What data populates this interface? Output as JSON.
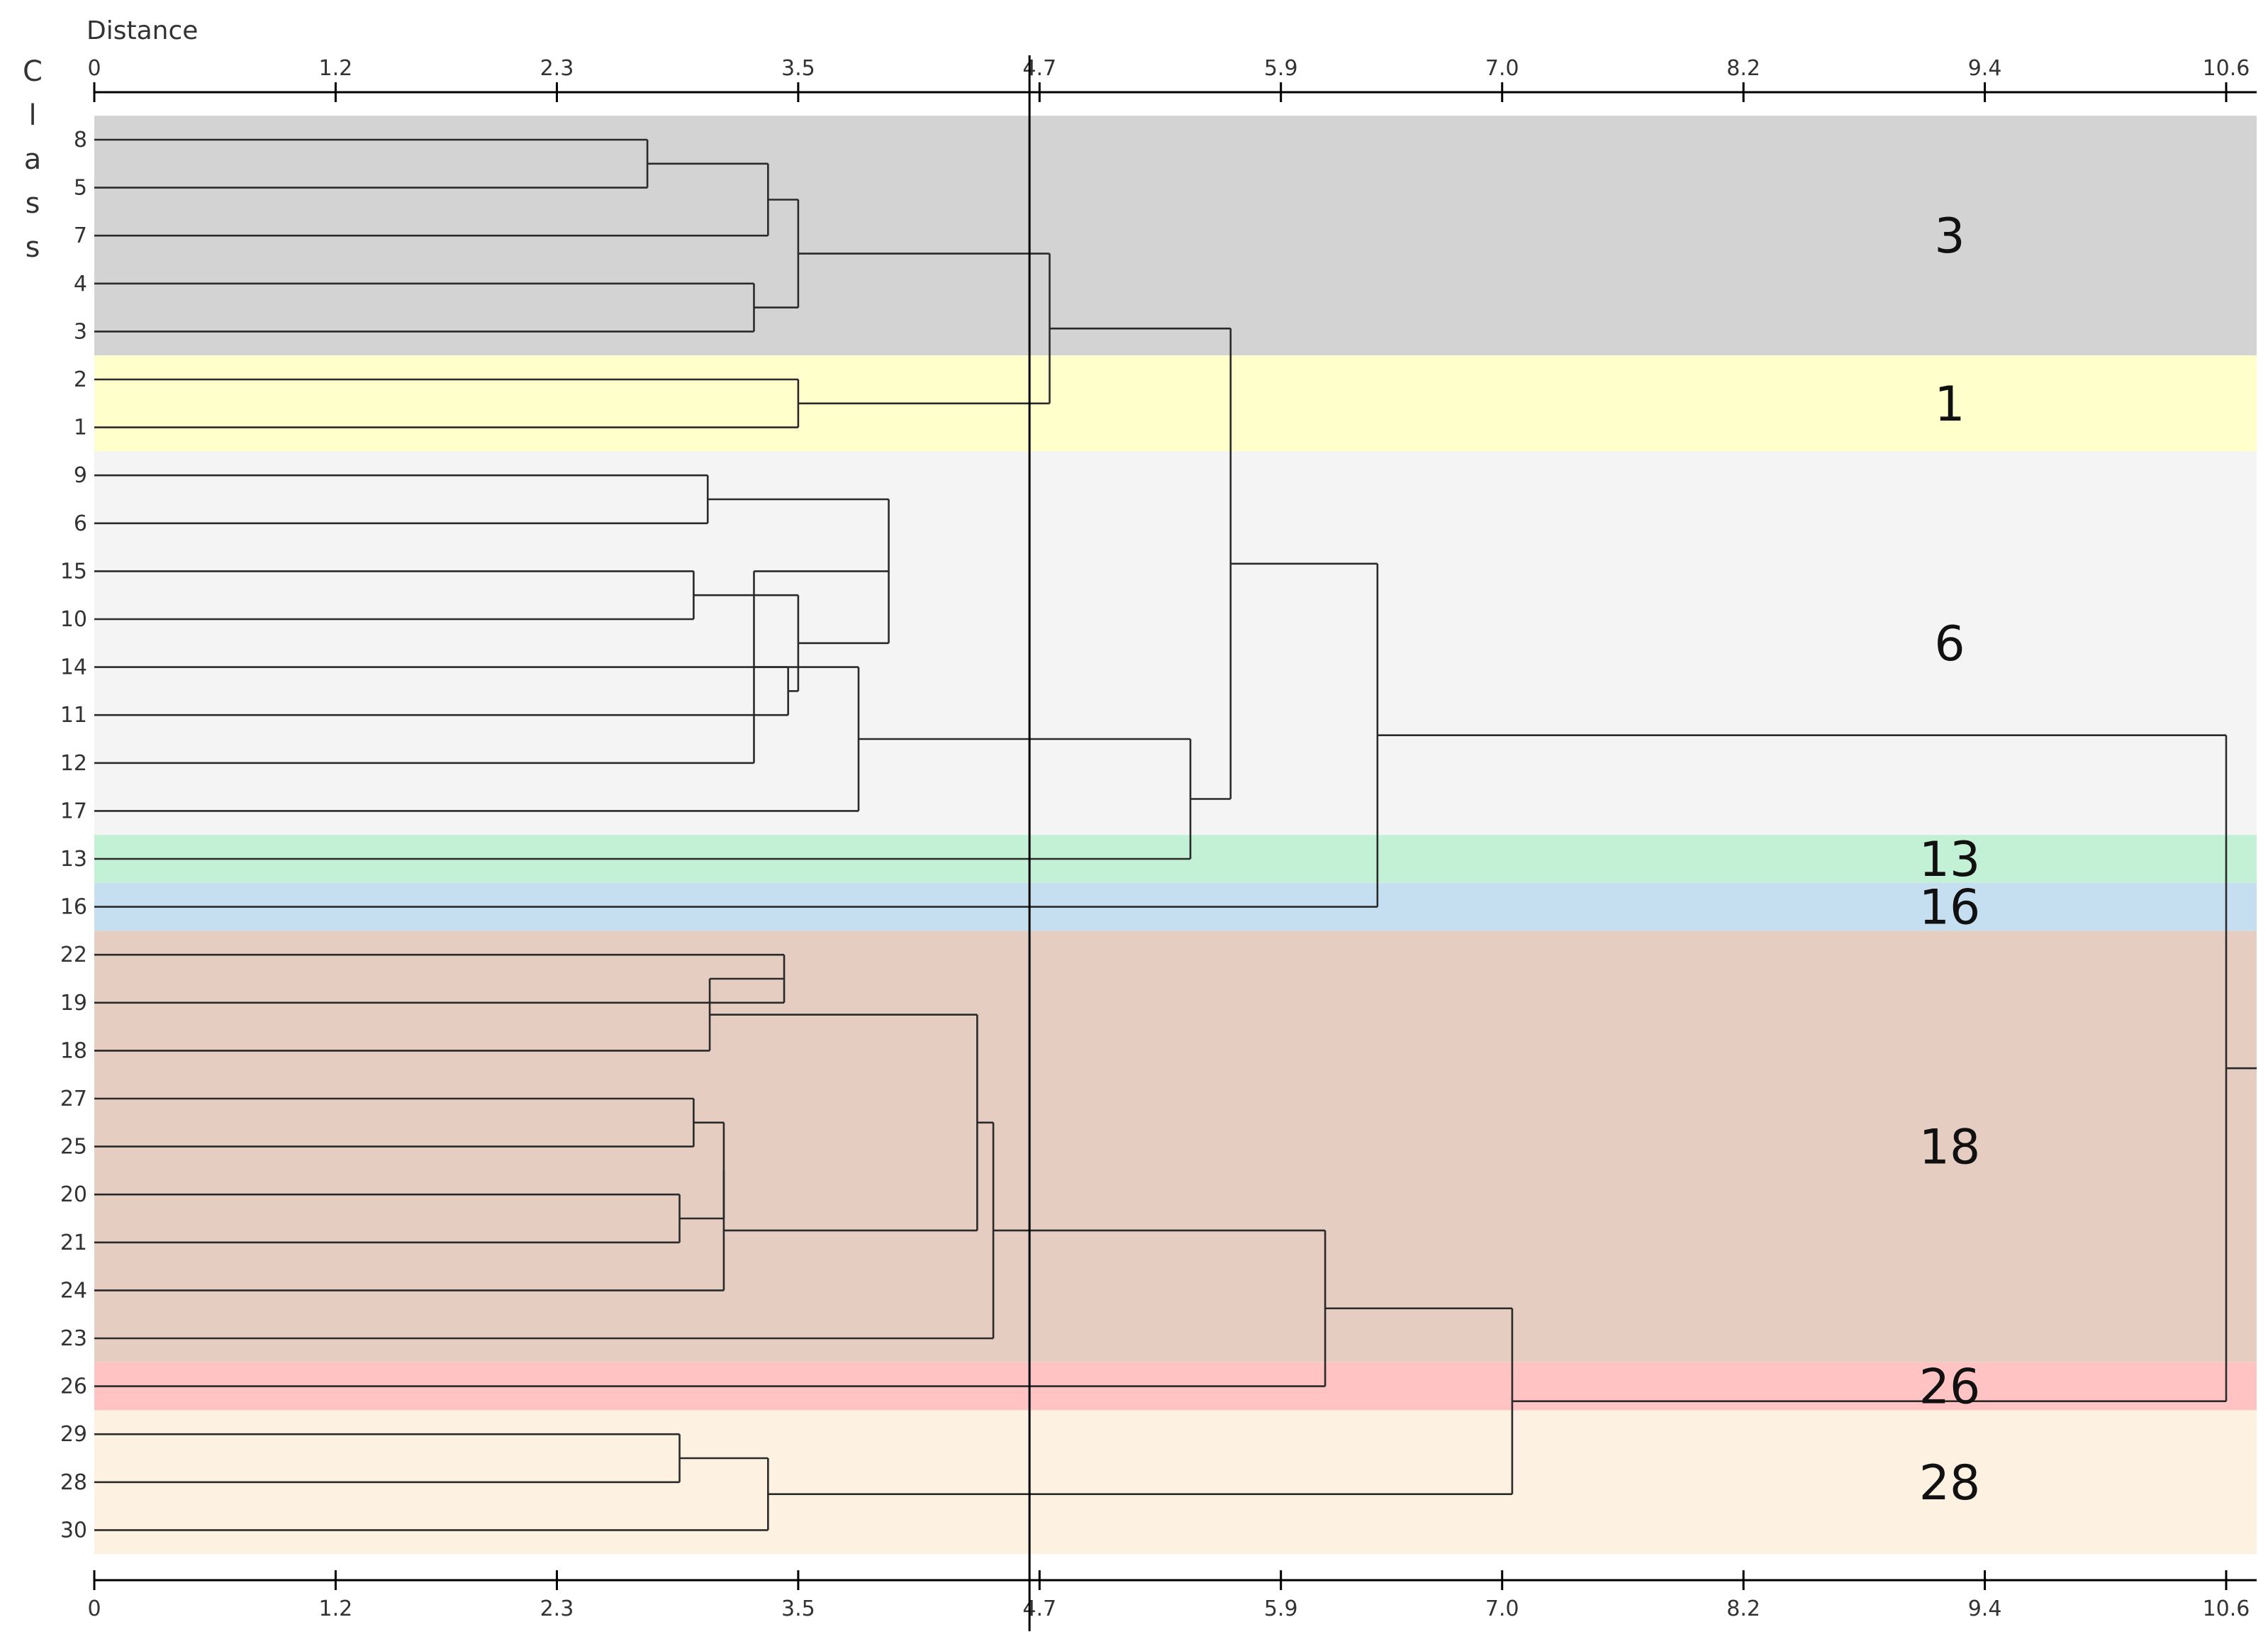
{
  "chart_data": {
    "type": "dendrogram",
    "xlabel": "Distance",
    "ylabel_letters": [
      "C",
      "l",
      "a",
      "s",
      "s"
    ],
    "xlim": [
      0,
      10.6
    ],
    "tick_values": [
      0,
      1.2,
      2.3,
      3.5,
      4.7,
      5.9,
      7.0,
      8.2,
      9.4,
      10.6
    ],
    "tick_labels": [
      "0",
      "1.2",
      "2.3",
      "3.5",
      "4.7",
      "5.9",
      "7.0",
      "8.2",
      "9.4",
      "10.6"
    ],
    "cut_distance": 4.65,
    "leaves": [
      "8",
      "5",
      "7",
      "4",
      "3",
      "2",
      "1",
      "9",
      "6",
      "15",
      "10",
      "14",
      "11",
      "12",
      "17",
      "13",
      "16",
      "22",
      "19",
      "18",
      "27",
      "25",
      "20",
      "21",
      "24",
      "23",
      "26",
      "29",
      "28",
      "30"
    ],
    "bands": [
      {
        "label": "3",
        "first_leaf": 0,
        "last_leaf": 4,
        "color": "#d3d3d3"
      },
      {
        "label": "1",
        "first_leaf": 5,
        "last_leaf": 6,
        "color": "#ffffcc"
      },
      {
        "label": "6",
        "first_leaf": 7,
        "last_leaf": 14,
        "color": "#f4f4f4"
      },
      {
        "label": "13",
        "first_leaf": 15,
        "last_leaf": 15,
        "color": "#c3f1d6"
      },
      {
        "label": "16",
        "first_leaf": 16,
        "last_leaf": 16,
        "color": "#c5dff1"
      },
      {
        "label": "18",
        "first_leaf": 17,
        "last_leaf": 25,
        "color": "#e6cdc1"
      },
      {
        "label": "26",
        "first_leaf": 26,
        "last_leaf": 26,
        "color": "#ffc3c3"
      },
      {
        "label": "28",
        "first_leaf": 27,
        "last_leaf": 29,
        "color": "#fdf1e2"
      }
    ],
    "merges": [
      {
        "left": 0,
        "right": 1,
        "distance": 2.75
      },
      {
        "left": 30,
        "right": 2,
        "distance": 3.35
      },
      {
        "left": 3,
        "right": 4,
        "distance": 3.28
      },
      {
        "left": 31,
        "right": 32,
        "distance": 3.5
      },
      {
        "left": 5,
        "right": 6,
        "distance": 3.5
      },
      {
        "left": 33,
        "right": 34,
        "distance": 4.75
      },
      {
        "left": 7,
        "right": 8,
        "distance": 3.05
      },
      {
        "left": 9,
        "right": 10,
        "distance": 2.98
      },
      {
        "left": 11,
        "right": 12,
        "distance": 3.45
      },
      {
        "left": 37,
        "right": 38,
        "distance": 3.5
      },
      {
        "left": 36,
        "right": 39,
        "distance": 3.95
      },
      {
        "left": 40,
        "right": 13,
        "distance": 3.28
      },
      {
        "left": 41,
        "right": 14,
        "distance": 3.8
      },
      {
        "left": 42,
        "right": 15,
        "distance": 5.45
      },
      {
        "left": 35,
        "right": 43,
        "distance": 5.65
      },
      {
        "left": 44,
        "right": 16,
        "distance": 6.38
      },
      {
        "left": 17,
        "right": 18,
        "distance": 3.43
      },
      {
        "left": 46,
        "right": 19,
        "distance": 3.06
      },
      {
        "left": 20,
        "right": 21,
        "distance": 2.98
      },
      {
        "left": 22,
        "right": 23,
        "distance": 2.91
      },
      {
        "left": 48,
        "right": 49,
        "distance": 3.13
      },
      {
        "left": 50,
        "right": 24,
        "distance": 3.13
      },
      {
        "left": 47,
        "right": 51,
        "distance": 4.39
      },
      {
        "left": 52,
        "right": 25,
        "distance": 4.47
      },
      {
        "left": 53,
        "right": 26,
        "distance": 6.12
      },
      {
        "left": 27,
        "right": 28,
        "distance": 2.91
      },
      {
        "left": 55,
        "right": 29,
        "distance": 3.35
      },
      {
        "left": 54,
        "right": 56,
        "distance": 7.05
      },
      {
        "left": 45,
        "right": 57,
        "distance": 10.6
      }
    ]
  }
}
